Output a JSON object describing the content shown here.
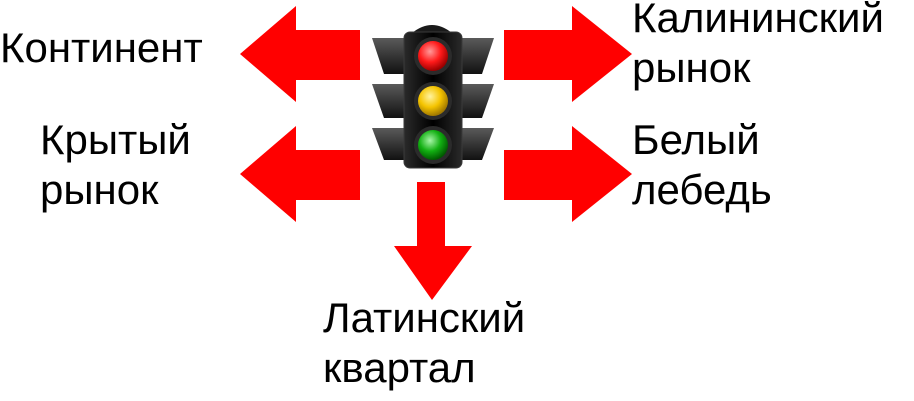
{
  "labels": {
    "continent": "Континент",
    "kalininsky": [
      "Калининский",
      "рынок"
    ],
    "krytyj": [
      "Крытый",
      "рынок"
    ],
    "belyj": [
      "Белый",
      "лебедь"
    ],
    "latinsky": [
      "Латинский",
      "квартал"
    ]
  },
  "colors": {
    "arrow": "#ff0000",
    "housing": "#000000",
    "housing_edge": "#3a3a3a",
    "red_light": "#ff1a1a",
    "yellow_light": "#f5c400",
    "green_light": "#12b012"
  },
  "icons": {
    "center": "traffic-light-icon",
    "arrows": [
      "arrow-left-icon",
      "arrow-right-icon",
      "arrow-down-icon"
    ]
  }
}
